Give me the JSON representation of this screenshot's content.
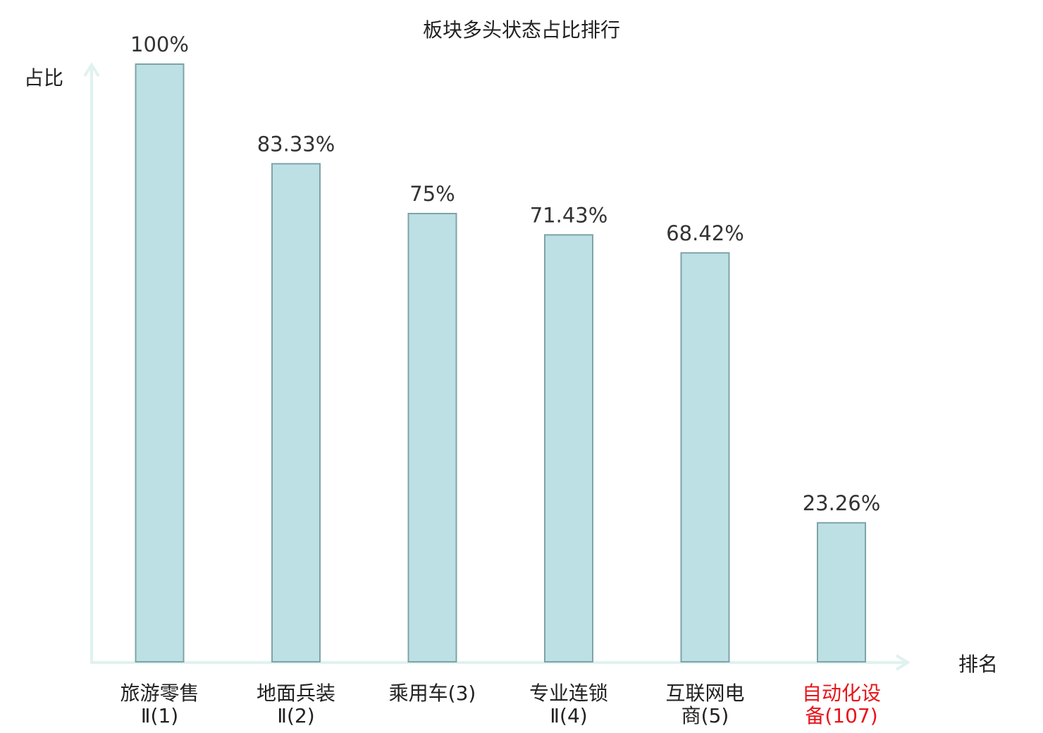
{
  "chart_data": {
    "type": "bar",
    "title": "板块多头状态占比排行",
    "ylabel": "占比",
    "xlabel": "排名",
    "ylim": [
      0,
      100
    ],
    "grid": false,
    "categories": [
      {
        "lines": [
          "旅游零售",
          "Ⅱ(1)"
        ],
        "highlight": false
      },
      {
        "lines": [
          "地面兵装",
          "Ⅱ(2)"
        ],
        "highlight": false
      },
      {
        "lines": [
          "乘用车(3)"
        ],
        "highlight": false
      },
      {
        "lines": [
          "专业连锁",
          "Ⅱ(4)"
        ],
        "highlight": false
      },
      {
        "lines": [
          "互联网电",
          "商(5)"
        ],
        "highlight": false
      },
      {
        "lines": [
          "自动化设",
          "备(107)"
        ],
        "highlight": true
      }
    ],
    "values": [
      100,
      83.33,
      75,
      71.43,
      68.42,
      23.26
    ],
    "value_labels": [
      "100%",
      "83.33%",
      "75%",
      "71.43%",
      "68.42%",
      "23.26%"
    ],
    "colors": {
      "bar_fill": "#bce0e3",
      "bar_stroke": "#7fa3a8",
      "axis": "#dff2ef",
      "highlight_text": "#e8151b",
      "text": "#222222"
    }
  }
}
